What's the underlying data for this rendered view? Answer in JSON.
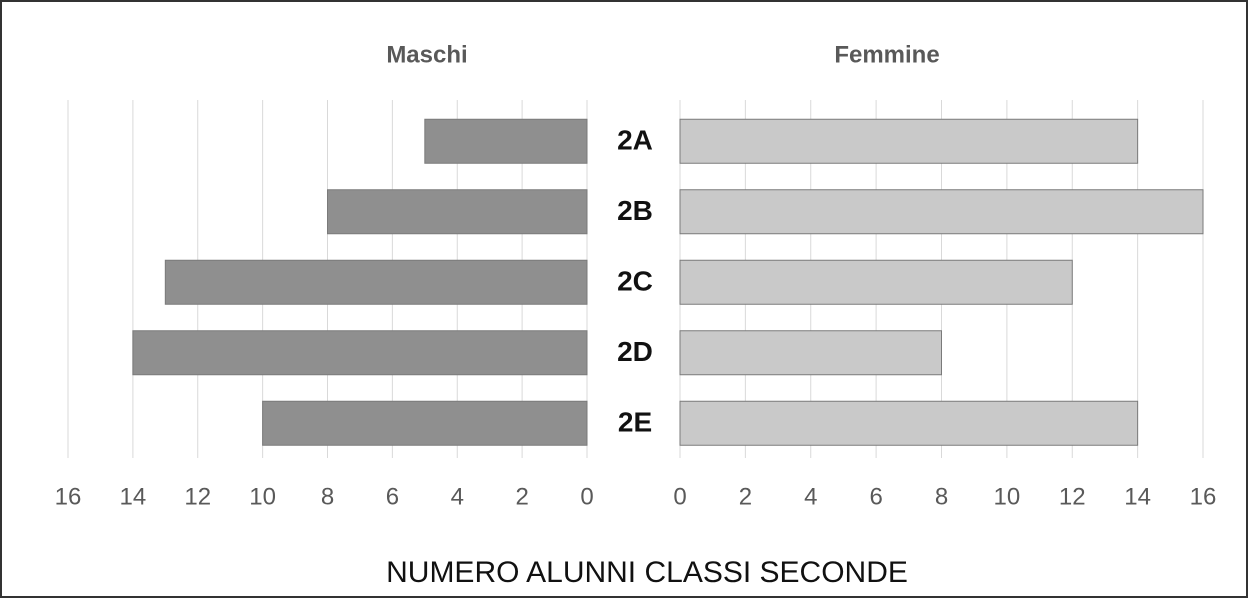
{
  "chart_data": {
    "type": "bar",
    "title": "NUMERO ALUNNI CLASSI SECONDE",
    "categories": [
      "2A",
      "2B",
      "2C",
      "2D",
      "2E"
    ],
    "series": [
      {
        "name": "Maschi",
        "color": "#8f8f8f",
        "values": [
          5,
          8,
          13,
          14,
          10
        ]
      },
      {
        "name": "Femmine",
        "color": "#c9c9c9",
        "values": [
          14,
          16,
          12,
          8,
          14
        ]
      }
    ],
    "xlim": [
      0,
      16
    ],
    "xticks": [
      0,
      2,
      4,
      6,
      8,
      10,
      12,
      14,
      16
    ],
    "grid": true
  }
}
